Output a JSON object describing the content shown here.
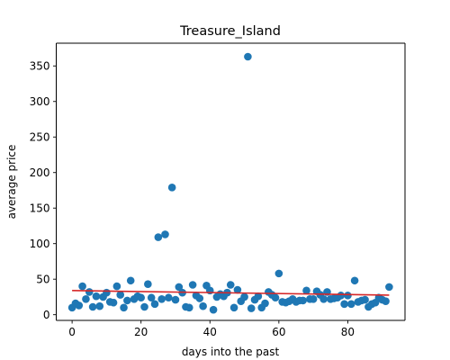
{
  "chart_data": {
    "type": "scatter",
    "title": "Treasure_Island",
    "xlabel": "days into the past",
    "ylabel": "average price",
    "xlim": [
      -4.6,
      96.6
    ],
    "ylim": [
      -8,
      382
    ],
    "xticks": [
      0,
      20,
      40,
      60,
      80
    ],
    "yticks": [
      0,
      50,
      100,
      150,
      200,
      250,
      300,
      350
    ],
    "grid": false,
    "colors": {
      "points": "#1f77b4",
      "trend": "#d62728"
    },
    "series": [
      {
        "x": [
          0,
          1,
          2,
          3,
          4,
          5,
          6,
          7,
          8,
          9,
          10,
          11,
          12,
          13,
          14,
          15,
          16,
          17,
          18,
          19,
          20,
          21,
          22,
          23,
          24,
          25,
          26,
          27,
          28,
          29,
          30,
          31,
          32,
          33,
          34,
          35,
          36,
          37,
          38,
          39,
          40,
          41,
          42,
          43,
          44,
          45,
          46,
          47,
          48,
          49,
          50,
          51,
          52,
          53,
          54,
          55,
          56,
          57,
          58,
          59,
          60,
          61,
          62,
          63,
          64,
          65,
          66,
          67,
          68,
          69,
          70,
          71,
          72,
          73,
          74,
          75,
          76,
          77,
          78,
          79,
          80,
          81,
          82,
          83,
          84,
          85,
          86,
          87,
          88,
          89,
          90,
          91,
          92
        ],
        "y": [
          10,
          16,
          13,
          40,
          22,
          32,
          11,
          26,
          12,
          25,
          31,
          18,
          17,
          40,
          28,
          10,
          20,
          48,
          22,
          26,
          24,
          11,
          43,
          24,
          15,
          109,
          22,
          113,
          24,
          179,
          21,
          39,
          31,
          11,
          10,
          42,
          27,
          23,
          12,
          41,
          34,
          7,
          25,
          29,
          26,
          31,
          42,
          10,
          35,
          19,
          25,
          363,
          9,
          21,
          26,
          10,
          16,
          32,
          28,
          24,
          58,
          18,
          17,
          19,
          22,
          18,
          20,
          20,
          34,
          22,
          22,
          33,
          28,
          22,
          32,
          22,
          23,
          24,
          27,
          15,
          27,
          15,
          48,
          18,
          20,
          21,
          11,
          15,
          17,
          24,
          21,
          19,
          39
        ]
      }
    ],
    "trendline": {
      "x": [
        0,
        92
      ],
      "y": [
        34,
        27.5
      ]
    }
  }
}
